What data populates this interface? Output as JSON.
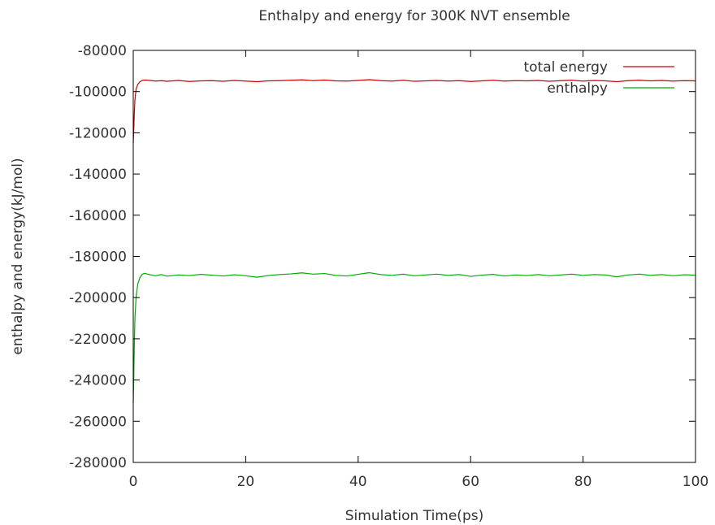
{
  "chart_data": {
    "type": "line",
    "title": "Enthalpy and energy for 300K NVT ensemble",
    "xlabel": "Simulation Time(ps)",
    "ylabel": "enthalpy and energy(kJ/mol)",
    "xlim": [
      0,
      100
    ],
    "ylim": [
      -280000,
      -80000
    ],
    "xticks": [
      0,
      20,
      40,
      60,
      80,
      100
    ],
    "yticks": [
      -280000,
      -260000,
      -240000,
      -220000,
      -200000,
      -180000,
      -160000,
      -140000,
      -120000,
      -100000,
      -80000
    ],
    "grid": false,
    "legend_position": "top-right",
    "series": [
      {
        "name": "total energy",
        "color": "#cc0000",
        "x": [
          0,
          0.1,
          0.2,
          0.3,
          0.5,
          0.8,
          1.2,
          1.6,
          2,
          3,
          4,
          5,
          6,
          8,
          10,
          12,
          14,
          16,
          18,
          20,
          22,
          24,
          26,
          28,
          30,
          32,
          34,
          36,
          38,
          40,
          42,
          44,
          46,
          48,
          50,
          52,
          54,
          56,
          58,
          60,
          62,
          64,
          66,
          68,
          70,
          72,
          74,
          76,
          78,
          80,
          82,
          84,
          86,
          88,
          90,
          92,
          94,
          96,
          98,
          100
        ],
        "values": [
          -125000,
          -118000,
          -110000,
          -104000,
          -99000,
          -96500,
          -95200,
          -94600,
          -94400,
          -94600,
          -94900,
          -94700,
          -95000,
          -94600,
          -95100,
          -94800,
          -94700,
          -95000,
          -94600,
          -94900,
          -95200,
          -94800,
          -94700,
          -94500,
          -94300,
          -94700,
          -94400,
          -94800,
          -94900,
          -94600,
          -94200,
          -94700,
          -94900,
          -94500,
          -95000,
          -94800,
          -94600,
          -94900,
          -94700,
          -95100,
          -94800,
          -94500,
          -94900,
          -94700,
          -94800,
          -94600,
          -95000,
          -94700,
          -94500,
          -94900,
          -94600,
          -94800,
          -95200,
          -94700,
          -94500,
          -94800,
          -94600,
          -94900,
          -94700,
          -94800
        ]
      },
      {
        "name": "enthalpy",
        "color": "#00aa00",
        "x": [
          0,
          0.1,
          0.2,
          0.3,
          0.5,
          0.8,
          1.2,
          1.6,
          2,
          3,
          4,
          5,
          6,
          8,
          10,
          12,
          14,
          16,
          18,
          20,
          22,
          24,
          26,
          28,
          30,
          32,
          34,
          36,
          38,
          40,
          42,
          44,
          46,
          48,
          50,
          52,
          54,
          56,
          58,
          60,
          62,
          64,
          66,
          68,
          70,
          72,
          74,
          76,
          78,
          80,
          82,
          84,
          86,
          88,
          90,
          92,
          94,
          96,
          98,
          100
        ],
        "values": [
          -251000,
          -238000,
          -222000,
          -210000,
          -200000,
          -193500,
          -190200,
          -188700,
          -188200,
          -188900,
          -189400,
          -188800,
          -189600,
          -189000,
          -189300,
          -188700,
          -189100,
          -189500,
          -188900,
          -189400,
          -190100,
          -189300,
          -188800,
          -188500,
          -188000,
          -188600,
          -188300,
          -189200,
          -189500,
          -188700,
          -187900,
          -188800,
          -189200,
          -188600,
          -189400,
          -189000,
          -188600,
          -189200,
          -188800,
          -189700,
          -189100,
          -188700,
          -189500,
          -189000,
          -189300,
          -188800,
          -189400,
          -189000,
          -188600,
          -189200,
          -188800,
          -189000,
          -189900,
          -189000,
          -188600,
          -189200,
          -188800,
          -189400,
          -188900,
          -189100
        ]
      }
    ]
  }
}
